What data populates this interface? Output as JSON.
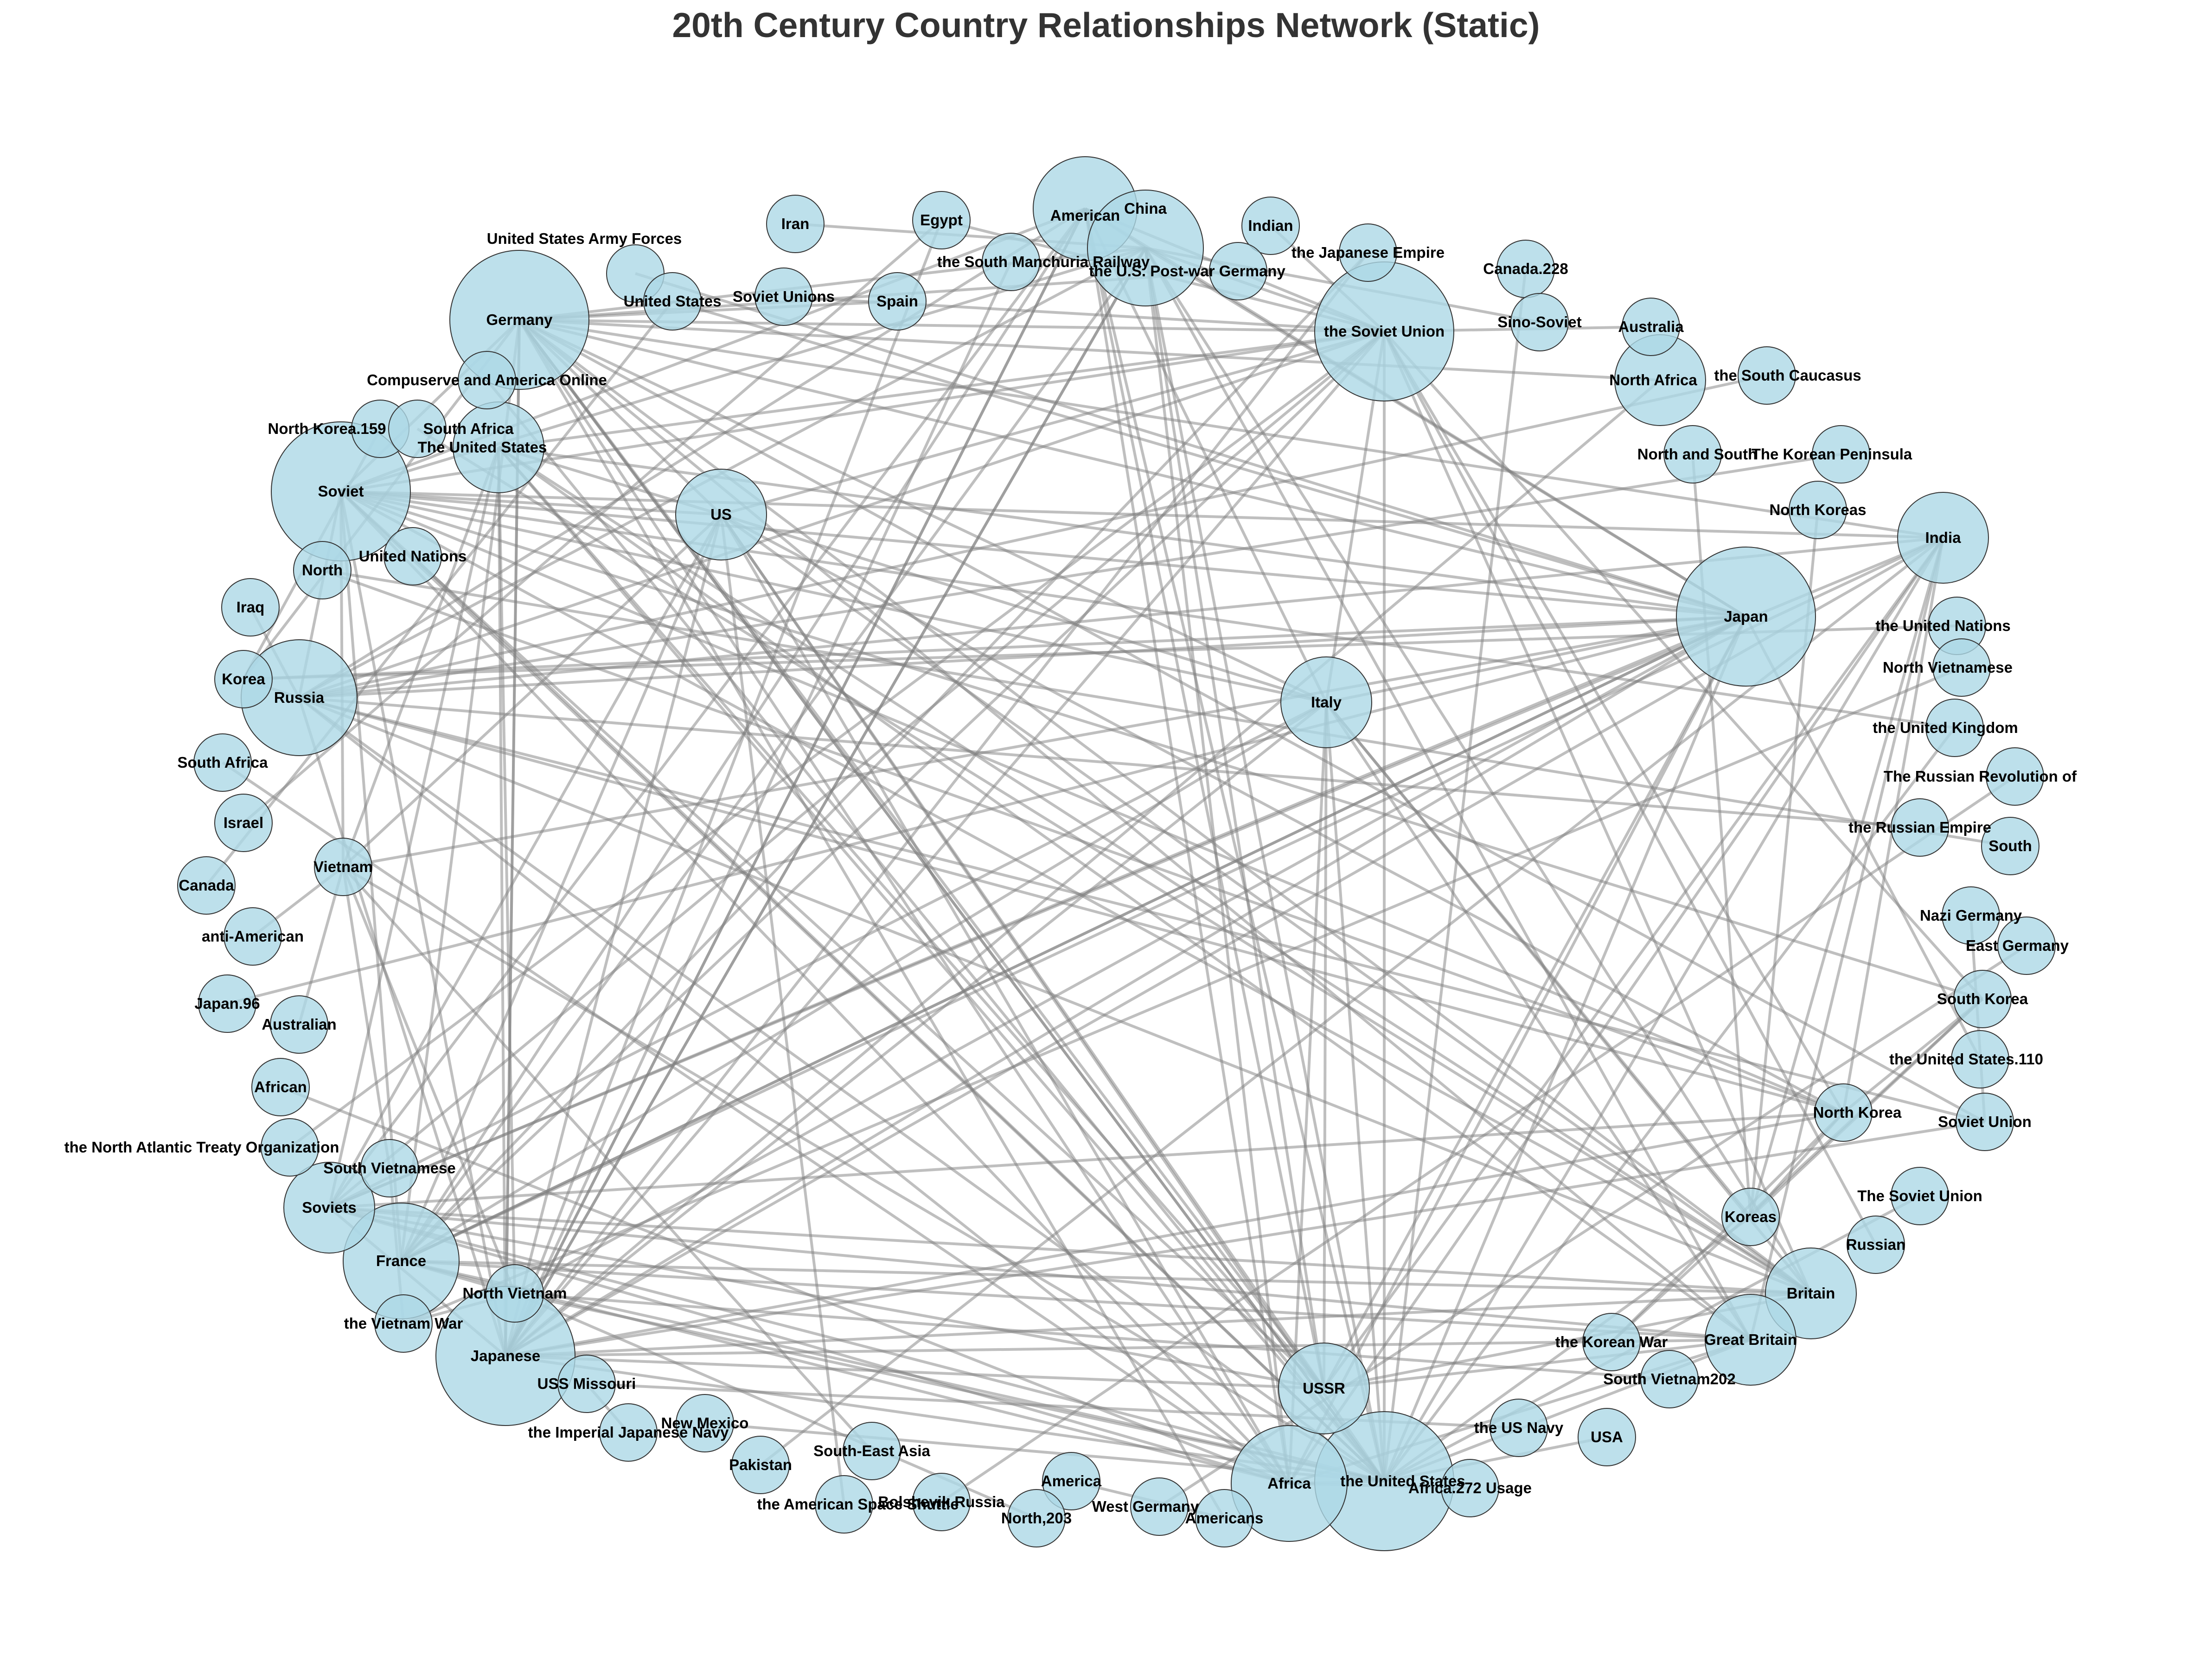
{
  "title": "20th Century Country Relationships Network (Static)",
  "colors": {
    "node_fill": "#add8e6",
    "node_stroke": "#333333",
    "edge": "#808080",
    "title": "#333333",
    "label": "#000000"
  },
  "nodes": [
    {
      "id": "American",
      "label": "American",
      "weight": 4
    },
    {
      "id": "Egypt",
      "label": "Egypt",
      "weight": 1
    },
    {
      "id": "Iran",
      "label": "Iran",
      "weight": 1
    },
    {
      "id": "Indian",
      "label": "Indian",
      "weight": 1
    },
    {
      "id": "China",
      "label": "China",
      "weight": 3
    },
    {
      "id": "the South Manchuria Railway",
      "label": "the South Manchuria Railway",
      "weight": 1
    },
    {
      "id": "the U.S. Post-war Germany",
      "label": "the U.S. Post-war Germany",
      "weight": 1
    },
    {
      "id": "the Japanese Empire",
      "label": "the Japanese Empire",
      "weight": 1
    },
    {
      "id": "Canada.228",
      "label": "Canada.228",
      "weight": 1
    },
    {
      "id": "United States Army Forces",
      "label": "United States Army Forces",
      "weight": 1
    },
    {
      "id": "United States",
      "label": "United States",
      "weight": 1
    },
    {
      "id": "Soviet Unions",
      "label": "Soviet Unions",
      "weight": 1
    },
    {
      "id": "Spain",
      "label": "Spain",
      "weight": 1
    },
    {
      "id": "Germany",
      "label": "Germany",
      "weight": 7
    },
    {
      "id": "the Soviet Union",
      "label": "the Soviet Union",
      "weight": 8
    },
    {
      "id": "Sino-Soviet",
      "label": "Sino-Soviet",
      "weight": 1
    },
    {
      "id": "Australia",
      "label": "Australia",
      "weight": 1
    },
    {
      "id": "Compuserve and America Online",
      "label": "Compuserve and America Online",
      "weight": 1
    },
    {
      "id": "North Africa",
      "label": "North Africa",
      "weight": 2
    },
    {
      "id": "the South Caucasus",
      "label": "the South Caucasus",
      "weight": 1
    },
    {
      "id": "North Korea.159",
      "label": "North Korea.159",
      "weight": 1
    },
    {
      "id": "South Africa",
      "label": "South Africa",
      "weight": 1
    },
    {
      "id": "The United States",
      "label": "The United States",
      "weight": 2
    },
    {
      "id": "North and South",
      "label": "North and South",
      "weight": 1
    },
    {
      "id": "The Korean Peninsula",
      "label": "The Korean Peninsula",
      "weight": 1
    },
    {
      "id": "Soviet",
      "label": "Soviet",
      "weight": 7
    },
    {
      "id": "US",
      "label": "US",
      "weight": 2
    },
    {
      "id": "North Koreas",
      "label": "North Koreas",
      "weight": 1
    },
    {
      "id": "India",
      "label": "India",
      "weight": 2
    },
    {
      "id": "North",
      "label": "North",
      "weight": 1
    },
    {
      "id": "United Nations",
      "label": "United Nations",
      "weight": 1
    },
    {
      "id": "Japan",
      "label": "Japan",
      "weight": 8
    },
    {
      "id": "Iraq",
      "label": "Iraq",
      "weight": 1
    },
    {
      "id": "the United Nations",
      "label": "the United Nations",
      "weight": 1
    },
    {
      "id": "Korea",
      "label": "Korea",
      "weight": 1
    },
    {
      "id": "Russia",
      "label": "Russia",
      "weight": 3
    },
    {
      "id": "Italy",
      "label": "Italy",
      "weight": 2
    },
    {
      "id": "North Vietnamese",
      "label": "North Vietnamese",
      "weight": 1
    },
    {
      "id": "the United Kingdom",
      "label": "the United Kingdom",
      "weight": 1
    },
    {
      "id": "South Africa.2",
      "label": "South Africa",
      "weight": 1
    },
    {
      "id": "The Russian Revolution of",
      "label": "The Russian Revolution of",
      "weight": 1
    },
    {
      "id": "Israel",
      "label": "Israel",
      "weight": 1
    },
    {
      "id": "the Russian Empire",
      "label": "the Russian Empire",
      "weight": 1
    },
    {
      "id": "South",
      "label": "South",
      "weight": 1
    },
    {
      "id": "Vietnam",
      "label": "Vietnam",
      "weight": 1
    },
    {
      "id": "Canada",
      "label": "Canada",
      "weight": 1
    },
    {
      "id": "anti-American",
      "label": "anti-American",
      "weight": 1
    },
    {
      "id": "Nazi Germany",
      "label": "Nazi Germany",
      "weight": 1
    },
    {
      "id": "East Germany",
      "label": "East Germany",
      "weight": 1
    },
    {
      "id": "Japan.96",
      "label": "Japan.96",
      "weight": 1
    },
    {
      "id": "Australian",
      "label": "Australian",
      "weight": 1
    },
    {
      "id": "South Korea",
      "label": "South Korea",
      "weight": 1
    },
    {
      "id": "the United States.110",
      "label": "the United States.110",
      "weight": 1
    },
    {
      "id": "African",
      "label": "African",
      "weight": 1
    },
    {
      "id": "North Korea",
      "label": "North Korea",
      "weight": 1
    },
    {
      "id": "Soviet Union",
      "label": "Soviet Union",
      "weight": 1
    },
    {
      "id": "the North Atlantic Treaty Organization",
      "label": "the North Atlantic Treaty Organization",
      "weight": 1
    },
    {
      "id": "South Vietnamese",
      "label": "South Vietnamese",
      "weight": 1
    },
    {
      "id": "Soviets",
      "label": "Soviets",
      "weight": 2
    },
    {
      "id": "The Soviet Union",
      "label": "The Soviet Union",
      "weight": 1
    },
    {
      "id": "Koreas",
      "label": "Koreas",
      "weight": 1
    },
    {
      "id": "France",
      "label": "France",
      "weight": 3
    },
    {
      "id": "Russian",
      "label": "Russian",
      "weight": 1
    },
    {
      "id": "North Vietnam",
      "label": "North Vietnam",
      "weight": 1
    },
    {
      "id": "Britain",
      "label": "Britain",
      "weight": 2
    },
    {
      "id": "the Vietnam War",
      "label": "the Vietnam War",
      "weight": 1
    },
    {
      "id": "Japanese",
      "label": "Japanese",
      "weight": 7
    },
    {
      "id": "the Korean War",
      "label": "the Korean War",
      "weight": 1
    },
    {
      "id": "Great Britain",
      "label": "Great Britain",
      "weight": 2
    },
    {
      "id": "USS Missouri",
      "label": "USS Missouri",
      "weight": 1
    },
    {
      "id": "USSR",
      "label": "USSR",
      "weight": 2
    },
    {
      "id": "South Vietnam202",
      "label": "South Vietnam202",
      "weight": 1
    },
    {
      "id": "New Mexico",
      "label": "New Mexico",
      "weight": 1
    },
    {
      "id": "the Imperial Japanese Navy",
      "label": "the Imperial Japanese Navy",
      "weight": 1
    },
    {
      "id": "the US Navy",
      "label": "the US Navy",
      "weight": 1
    },
    {
      "id": "USA",
      "label": "USA",
      "weight": 1
    },
    {
      "id": "Pakistan",
      "label": "Pakistan",
      "weight": 1
    },
    {
      "id": "South-East Asia",
      "label": "South-East Asia",
      "weight": 1
    },
    {
      "id": "America",
      "label": "America",
      "weight": 1
    },
    {
      "id": "Africa",
      "label": "Africa",
      "weight": 3
    },
    {
      "id": "the United States",
      "label": "the United States",
      "weight": 8
    },
    {
      "id": "Africa.272 Usage",
      "label": "Africa.272 Usage",
      "weight": 1
    },
    {
      "id": "the American Space Shuttle",
      "label": "the American Space Shuttle",
      "weight": 1
    },
    {
      "id": "Bolshevik Russia",
      "label": "Bolshevik Russia",
      "weight": 1
    },
    {
      "id": "West Germany",
      "label": "West Germany",
      "weight": 1
    },
    {
      "id": "North,203",
      "label": "North,203",
      "weight": 1
    },
    {
      "id": "Americans",
      "label": "Americans",
      "weight": 1
    }
  ],
  "edges": [
    [
      "Germany",
      "the Soviet Union"
    ],
    [
      "Germany",
      "Japan"
    ],
    [
      "Germany",
      "US"
    ],
    [
      "Germany",
      "Italy"
    ],
    [
      "Germany",
      "France"
    ],
    [
      "Germany",
      "Japanese"
    ],
    [
      "Germany",
      "the United States"
    ],
    [
      "Germany",
      "Africa"
    ],
    [
      "Germany",
      "USSR"
    ],
    [
      "Germany",
      "North Africa"
    ],
    [
      "Germany",
      "Britain"
    ],
    [
      "Germany",
      "Spain"
    ],
    [
      "Germany",
      "Soviet"
    ],
    [
      "Germany",
      "India"
    ],
    [
      "Germany",
      "Great Britain"
    ],
    [
      "Germany",
      "Soviet Union"
    ],
    [
      "Germany",
      "Korea"
    ],
    [
      "Germany",
      "Americans"
    ],
    [
      "Soviet",
      "Japan"
    ],
    [
      "Soviet",
      "the Soviet Union"
    ],
    [
      "Soviet",
      "the United States"
    ],
    [
      "Soviet",
      "India"
    ],
    [
      "Soviet",
      "Italy"
    ],
    [
      "Soviet",
      "Britain"
    ],
    [
      "Soviet",
      "North Korea"
    ],
    [
      "Soviet",
      "China"
    ],
    [
      "Soviet",
      "American"
    ],
    [
      "Soviet",
      "USSR"
    ],
    [
      "Soviet",
      "the United Kingdom"
    ],
    [
      "Soviet",
      "South Korea"
    ],
    [
      "Soviet",
      "Africa"
    ],
    [
      "Soviet",
      "Vietnam"
    ],
    [
      "Soviet",
      "France"
    ],
    [
      "Japan",
      "American"
    ],
    [
      "Japan",
      "China"
    ],
    [
      "Japan",
      "the United States"
    ],
    [
      "Japan",
      "Japanese"
    ],
    [
      "Japan",
      "France"
    ],
    [
      "Japan",
      "Russia"
    ],
    [
      "Japan",
      "The United States"
    ],
    [
      "Japan",
      "United States"
    ],
    [
      "Japan",
      "Soviets"
    ],
    [
      "Japan",
      "Vietnam"
    ],
    [
      "Japan",
      "USSR"
    ],
    [
      "Japan",
      "Africa"
    ],
    [
      "Japan",
      "Korea"
    ],
    [
      "Japan",
      "North Vietnam"
    ],
    [
      "the Soviet Union",
      "American"
    ],
    [
      "the Soviet Union",
      "China"
    ],
    [
      "the Soviet Union",
      "Japanese"
    ],
    [
      "the Soviet Union",
      "the United States"
    ],
    [
      "the Soviet Union",
      "France"
    ],
    [
      "the Soviet Union",
      "North Korea"
    ],
    [
      "the Soviet Union",
      "South Korea"
    ],
    [
      "the Soviet Union",
      "US"
    ],
    [
      "the Soviet Union",
      "Britain"
    ],
    [
      "the Soviet Union",
      "The United States"
    ],
    [
      "the Soviet Union",
      "Russia"
    ],
    [
      "the Soviet Union",
      "Soviets"
    ],
    [
      "the Soviet Union",
      "Australia"
    ],
    [
      "the Soviet Union",
      "Soviet Unions"
    ],
    [
      "the Soviet Union",
      "Egypt"
    ],
    [
      "the United States",
      "American"
    ],
    [
      "the United States",
      "China"
    ],
    [
      "the United States",
      "Japanese"
    ],
    [
      "the United States",
      "France"
    ],
    [
      "the United States",
      "Russia"
    ],
    [
      "the United States",
      "Soviets"
    ],
    [
      "the United States",
      "Italy"
    ],
    [
      "the United States",
      "US"
    ],
    [
      "the United States",
      "The United States"
    ],
    [
      "the United States",
      "India"
    ],
    [
      "the United States",
      "Great Britain"
    ],
    [
      "the United States",
      "North Vietnam"
    ],
    [
      "the United States",
      "Vietnam"
    ],
    [
      "the United States",
      "Koreas"
    ],
    [
      "the United States",
      "the United Kingdom"
    ],
    [
      "the United States",
      "Germany"
    ],
    [
      "the United States",
      "United Nations"
    ],
    [
      "Japanese",
      "American"
    ],
    [
      "Japanese",
      "China"
    ],
    [
      "Japanese",
      "India"
    ],
    [
      "Japanese",
      "Italy"
    ],
    [
      "Japanese",
      "Britain"
    ],
    [
      "Japanese",
      "USSR"
    ],
    [
      "Japanese",
      "North Korea"
    ],
    [
      "Japanese",
      "Soviet Union"
    ],
    [
      "Japanese",
      "The United States"
    ],
    [
      "Japanese",
      "the Japanese Empire"
    ],
    [
      "Japanese",
      "Egypt"
    ],
    [
      "Japanese",
      "North Africa"
    ],
    [
      "American",
      "China"
    ],
    [
      "American",
      "France"
    ],
    [
      "American",
      "Africa"
    ],
    [
      "American",
      "USSR"
    ],
    [
      "American",
      "Soviets"
    ],
    [
      "American",
      "Italy"
    ],
    [
      "American",
      "Russia"
    ],
    [
      "China",
      "France"
    ],
    [
      "China",
      "Africa"
    ],
    [
      "China",
      "Russia"
    ],
    [
      "China",
      "Britain"
    ],
    [
      "China",
      "Great Britain"
    ],
    [
      "China",
      "USSR"
    ],
    [
      "China",
      "Iran"
    ],
    [
      "France",
      "Africa"
    ],
    [
      "France",
      "Britain"
    ],
    [
      "France",
      "Great Britain"
    ],
    [
      "France",
      "US"
    ],
    [
      "France",
      "Italy"
    ],
    [
      "France",
      "North Vietnam"
    ],
    [
      "France",
      "India"
    ],
    [
      "France",
      "the Japanese Empire"
    ],
    [
      "Africa",
      "US"
    ],
    [
      "Africa",
      "Italy"
    ],
    [
      "Africa",
      "Great Britain"
    ],
    [
      "Africa",
      "Soviets"
    ],
    [
      "Africa",
      "Russia"
    ],
    [
      "Africa",
      "India"
    ],
    [
      "Russia",
      "Britain"
    ],
    [
      "Russia",
      "India"
    ],
    [
      "Russia",
      "Soviet Union"
    ],
    [
      "Russia",
      "the Russian Empire"
    ],
    [
      "Russia",
      "North Korea"
    ],
    [
      "Russia",
      "The Korean Peninsula"
    ],
    [
      "Russia",
      "Iraq"
    ],
    [
      "Russia",
      "Korea"
    ],
    [
      "Britain",
      "Italy"
    ],
    [
      "Britain",
      "US"
    ],
    [
      "Britain",
      "Soviets"
    ],
    [
      "Britain",
      "The United States"
    ],
    [
      "Britain",
      "USSR"
    ],
    [
      "Great Britain",
      "USSR"
    ],
    [
      "Great Britain",
      "Soviets"
    ],
    [
      "Great Britain",
      "The United States"
    ],
    [
      "Great Britain",
      "Italy"
    ],
    [
      "Great Britain",
      "India"
    ],
    [
      "USSR",
      "Soviets"
    ],
    [
      "USSR",
      "US"
    ],
    [
      "USSR",
      "India"
    ],
    [
      "USSR",
      "The United States"
    ],
    [
      "USSR",
      "Italy"
    ],
    [
      "The United States",
      "North Vietnam"
    ],
    [
      "The United States",
      "Vietnam"
    ],
    [
      "The United States",
      "Soviets"
    ],
    [
      "The United States",
      "US"
    ],
    [
      "US",
      "Italy"
    ],
    [
      "US",
      "Soviets"
    ],
    [
      "US",
      "North Korea"
    ],
    [
      "US",
      "Vietnam"
    ],
    [
      "India",
      "Soviets"
    ],
    [
      "India",
      "North Korea"
    ],
    [
      "India",
      "Koreas"
    ],
    [
      "Italy",
      "Soviets"
    ],
    [
      "Italy",
      "Koreas"
    ],
    [
      "Soviets",
      "North Korea"
    ],
    [
      "North Korea",
      "South Korea"
    ],
    [
      "North Korea",
      "Koreas"
    ],
    [
      "South Korea",
      "Koreas"
    ],
    [
      "South Korea",
      "the Korean War"
    ],
    [
      "North Korea",
      "the Korean War"
    ],
    [
      "Vietnam",
      "North Vietnam"
    ],
    [
      "Vietnam",
      "South Vietnamese"
    ],
    [
      "North Vietnam",
      "South Vietnam202"
    ],
    [
      "North Vietnam",
      "the Vietnam War"
    ],
    [
      "South Vietnamese",
      "the Vietnam War"
    ],
    [
      "North Vietnamese",
      "the Vietnam War"
    ],
    [
      "Korea",
      "North Korea.159"
    ],
    [
      "North",
      "North Korea"
    ],
    [
      "North and South",
      "Koreas"
    ],
    [
      "North Koreas",
      "Koreas"
    ],
    [
      "the Imperial Japanese Navy",
      "USS Missouri"
    ],
    [
      "USS Missouri",
      "the US Navy"
    ],
    [
      "USA",
      "the United States"
    ],
    [
      "Pakistan",
      "India"
    ],
    [
      "South-East Asia",
      "Vietnam"
    ],
    [
      "America",
      "Americans"
    ],
    [
      "West Germany",
      "East Germany"
    ],
    [
      "Nazi Germany",
      "Soviet Union"
    ],
    [
      "Bolshevik Russia",
      "The Russian Revolution of"
    ],
    [
      "Canada",
      "United States"
    ],
    [
      "Canada.228",
      "the United States"
    ],
    [
      "Israel",
      "Egypt"
    ],
    [
      "the South Manchuria Railway",
      "Japanese"
    ],
    [
      "the U.S. Post-war Germany",
      "Germany"
    ],
    [
      "Sino-Soviet",
      "China"
    ],
    [
      "the South Caucasus",
      "Russia"
    ],
    [
      "Compuserve and America Online",
      "the United States"
    ],
    [
      "anti-American",
      "Vietnam"
    ],
    [
      "Japan.96",
      "Japan"
    ],
    [
      "Australian",
      "Vietnam"
    ],
    [
      "African",
      "Africa"
    ],
    [
      "the North Atlantic Treaty Organization",
      "the Soviet Union"
    ],
    [
      "The Soviet Union",
      "the United States"
    ],
    [
      "Russian",
      "the Soviet Union"
    ],
    [
      "the American Space Shuttle",
      "US"
    ],
    [
      "North,203",
      "North Vietnam"
    ],
    [
      "Africa.272 Usage",
      "Africa"
    ],
    [
      "United States Army Forces",
      "Japan"
    ],
    [
      "South Africa",
      "Britain"
    ],
    [
      "South",
      "North"
    ],
    [
      "the United Nations",
      "Korea"
    ],
    [
      "the United States.110",
      "Japan"
    ],
    [
      "South Africa.2",
      "Africa"
    ],
    [
      "New Mexico",
      "the United States"
    ],
    [
      "Indian",
      "the Soviet Union"
    ],
    [
      "Germany",
      "Japanese"
    ],
    [
      "Soviet",
      "Japanese"
    ],
    [
      "Japanese",
      "Great Britain"
    ],
    [
      "France",
      "Japan"
    ],
    [
      "American",
      "Japanese"
    ],
    [
      "China",
      "Japanese"
    ],
    [
      "Germany",
      "China"
    ],
    [
      "Soviet",
      "Russia"
    ],
    [
      "Soviet",
      "US"
    ],
    [
      "Japan",
      "Italy"
    ],
    [
      "the Soviet Union",
      "Italy"
    ],
    [
      "the United States",
      "Africa"
    ],
    [
      "Japanese",
      "Soviets"
    ],
    [
      "Japanese",
      "US"
    ],
    [
      "Japanese",
      "Russia"
    ]
  ]
}
